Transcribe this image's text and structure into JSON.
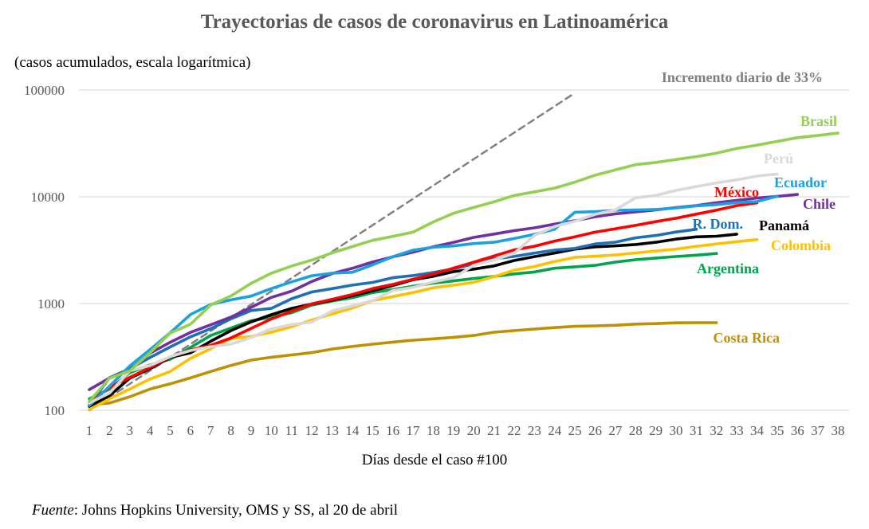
{
  "chart_data": {
    "type": "line",
    "title": "Trayectorias de casos de coronavirus en Latinoamérica",
    "subtitle": "(casos acumulados, escala logarítmica)",
    "xlabel": "Días desde el caso #100",
    "ylabel": "",
    "y_scale": "log",
    "ylim": [
      100,
      100000
    ],
    "xlim": [
      1,
      38
    ],
    "y_ticks": [
      "100",
      "1000",
      "10000",
      "100000"
    ],
    "x_ticks": [
      "1",
      "2",
      "3",
      "4",
      "5",
      "6",
      "7",
      "8",
      "9",
      "10",
      "11",
      "12",
      "13",
      "14",
      "15",
      "16",
      "17",
      "18",
      "19",
      "20",
      "21",
      "22",
      "23",
      "24",
      "25",
      "26",
      "27",
      "28",
      "29",
      "30",
      "31",
      "32",
      "33",
      "34",
      "35",
      "36",
      "37",
      "38"
    ],
    "grid": "horizontal",
    "legend": "labels at line ends",
    "series": [
      {
        "name": "Brasil",
        "color": "#92d050",
        "values": [
          121,
          200,
          234,
          346,
          529,
          640,
          970,
          1178,
          1546,
          1924,
          2247,
          2554,
          2985,
          3417,
          3904,
          4256,
          4661,
          5812,
          7006,
          7938,
          8977,
          10278,
          11130,
          12056,
          13727,
          15938,
          17857,
          20000,
          20964,
          22330,
          23769,
          25600,
          28320,
          30425,
          33000,
          35800,
          37500,
          39500
        ]
      },
      {
        "name": "Perú",
        "color": "#d9d9d9",
        "values": [
          117,
          145,
          234,
          263,
          318,
          363,
          395,
          416,
          480,
          580,
          635,
          671,
          852,
          950,
          1065,
          1323,
          1414,
          1595,
          1746,
          2281,
          2561,
          2954,
          4342,
          5256,
          5897,
          6848,
          7519,
          9784,
          10303,
          11475,
          12491,
          13489,
          14420,
          15628,
          16325
        ]
      },
      {
        "name": "Ecuador",
        "color": "#1aa1e2",
        "values": [
          111,
          168,
          260,
          370,
          532,
          789,
          981,
          1082,
          1173,
          1382,
          1595,
          1823,
          1924,
          1962,
          2302,
          2748,
          3163,
          3368,
          3465,
          3646,
          3747,
          4065,
          4450,
          4965,
          7161,
          7257,
          7466,
          7529,
          7603,
          7858,
          8225,
          8450,
          8820,
          9022,
          10128
        ]
      },
      {
        "name": "Chile",
        "color": "#7030a0",
        "values": [
          156,
          201,
          238,
          342,
          434,
          537,
          632,
          746,
          922,
          1142,
          1306,
          1610,
          1909,
          2139,
          2449,
          2738,
          3031,
          3404,
          3737,
          4161,
          4471,
          4815,
          5116,
          5546,
          5972,
          6501,
          6927,
          7213,
          7525,
          7917,
          8273,
          8807,
          9252,
          9730,
          10088,
          10507
        ]
      },
      {
        "name": "México",
        "color": "#ff0000",
        "values": [
          118,
          164,
          203,
          251,
          316,
          367,
          405,
          475,
          585,
          717,
          848,
          993,
          1094,
          1215,
          1378,
          1510,
          1688,
          1890,
          2143,
          2439,
          2785,
          3181,
          3441,
          3844,
          4219,
          4661,
          5014,
          5399,
          5847,
          6297,
          6875,
          7497,
          8261,
          8772
        ]
      },
      {
        "name": "R. Dom.",
        "color": "#1f6fb4",
        "values": [
          112,
          202,
          245,
          312,
          392,
          488,
          581,
          719,
          859,
          901,
          1109,
          1284,
          1380,
          1488,
          1578,
          1745,
          1828,
          1956,
          2111,
          2349,
          2620,
          2759,
          2967,
          3167,
          3286,
          3614,
          3755,
          4126,
          4335,
          4680,
          4964
        ]
      },
      {
        "name": "Panamá",
        "color": "#000000",
        "values": [
          109,
          137,
          200,
          245,
          313,
          345,
          443,
          558,
          674,
          786,
          901,
          989,
          1075,
          1181,
          1317,
          1475,
          1673,
          1801,
          1988,
          2100,
          2249,
          2528,
          2752,
          2974,
          3234,
          3400,
          3472,
          3574,
          3751,
          4016,
          4210,
          4273,
          4467
        ]
      },
      {
        "name": "Colombia",
        "color": "#ffc000",
        "values": [
          102,
          128,
          158,
          196,
          231,
          306,
          378,
          470,
          491,
          539,
          608,
          702,
          798,
          906,
          1065,
          1161,
          1267,
          1406,
          1485,
          1579,
          1780,
          2054,
          2223,
          2473,
          2709,
          2776,
          2852,
          2979,
          3105,
          3233,
          3439,
          3621,
          3792,
          3977
        ]
      },
      {
        "name": "Argentina",
        "color": "#00a44a",
        "values": [
          128,
          158,
          225,
          266,
          301,
          387,
          502,
          589,
          690,
          745,
          820,
          966,
          1054,
          1133,
          1265,
          1353,
          1451,
          1554,
          1628,
          1715,
          1795,
          1894,
          1975,
          2142,
          2208,
          2277,
          2443,
          2571,
          2669,
          2758,
          2839,
          2941
        ]
      },
      {
        "name": "Costa Rica",
        "color": "#bf9000",
        "values": [
          113,
          117,
          134,
          158,
          177,
          201,
          231,
          263,
          295,
          314,
          330,
          347,
          375,
          396,
          416,
          435,
          454,
          467,
          483,
          502,
          539,
          558,
          577,
          595,
          612,
          618,
          626,
          642,
          649,
          660,
          662,
          662
        ]
      },
      {
        "name": "Incremento diario de 33%",
        "color": "#808080",
        "style": "dashed",
        "values": [
          100,
          133,
          177,
          235,
          313,
          416,
          553,
          736,
          979,
          1302,
          1731,
          2303,
          3063,
          4073,
          5418,
          7206,
          9584,
          12746,
          16952,
          22546,
          29987,
          39882,
          53043,
          70548,
          93830
        ]
      }
    ]
  },
  "source": {
    "label": "Fuente",
    "text": ": Johns Hopkins University, OMS y SS, al 20 de abril"
  }
}
